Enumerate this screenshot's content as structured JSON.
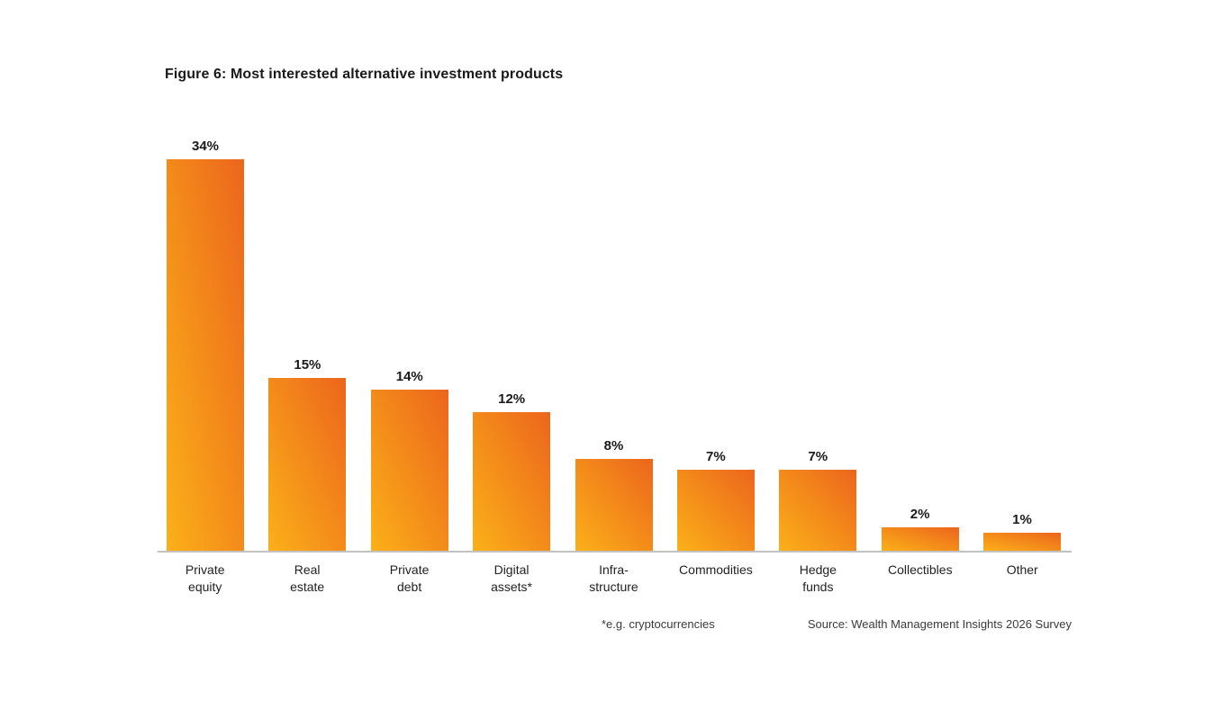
{
  "figure": {
    "title": "Figure 6: Most interested alternative investment products"
  },
  "chart_data": {
    "type": "bar",
    "title": "Figure 6: Most interested alternative investment products",
    "categories": [
      "Private equity",
      "Real estate",
      "Private debt",
      "Digital assets*",
      "Infra-structure",
      "Commodities",
      "Hedge funds",
      "Collectibles",
      "Other"
    ],
    "tick_labels": [
      "Private\nequity",
      "Real\nestate",
      "Private\ndebt",
      "Digital\nassets*",
      "Infra-\nstructure",
      "Commodities",
      "Hedge\nfunds",
      "Collectibles",
      "Other"
    ],
    "values": [
      34,
      15,
      14,
      12,
      8,
      7,
      7,
      2,
      1
    ],
    "value_labels": [
      "34%",
      "15%",
      "14%",
      "12%",
      "8%",
      "7%",
      "7%",
      "2%",
      "1%"
    ],
    "unit": "%",
    "ylabel": "",
    "xlabel": "",
    "ylim": [
      0,
      36
    ],
    "grid": false,
    "legend": false,
    "bar_gradient_bottom_left": "#fbb019",
    "bar_gradient_top_right": "#ec651c",
    "axis_line_color": "#c2c2c2",
    "value_label_color": "#1a1a1a"
  },
  "footnotes": {
    "asterisk_note": "*e.g. cryptocurrencies",
    "source": "Source: Wealth Management Insights 2026 Survey"
  }
}
